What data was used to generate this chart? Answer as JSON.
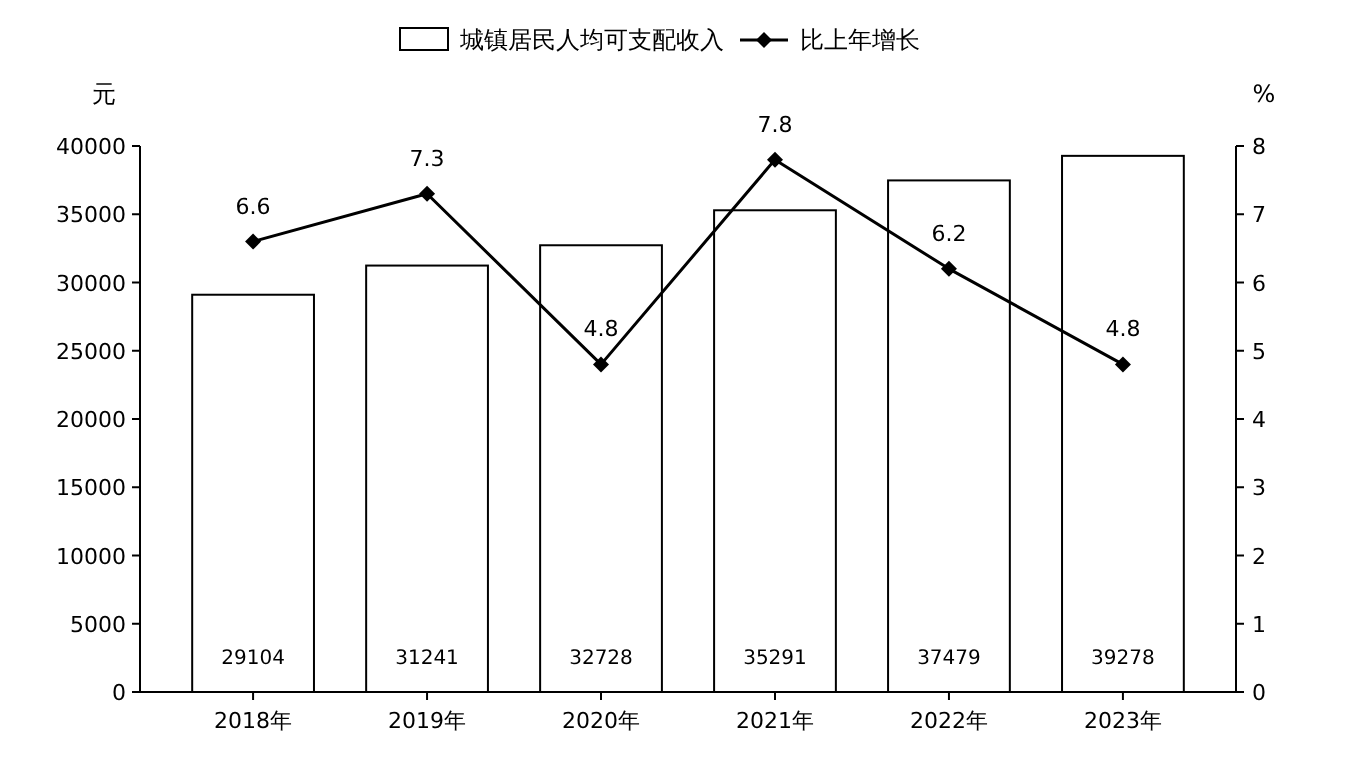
{
  "chart_data": {
    "type": "bar",
    "ylabel": "元",
    "y2label": "%",
    "categories": [
      "2018年",
      "2019年",
      "2020年",
      "2021年",
      "2022年",
      "2023年"
    ],
    "series": [
      {
        "name": "城镇居民人均可支配收入",
        "color": "#ffffff",
        "values": [
          29104,
          31241,
          32728,
          35291,
          37479,
          39278
        ]
      },
      {
        "name": "比上年增长",
        "type": "line",
        "axis": "y2",
        "color": "#000000",
        "marker": "diamond",
        "values": [
          6.6,
          7.3,
          4.8,
          7.8,
          6.2,
          4.8
        ]
      }
    ],
    "ylim": [
      0,
      40000
    ],
    "yticks": [
      0,
      5000,
      10000,
      15000,
      20000,
      25000,
      30000,
      35000,
      40000
    ],
    "y2lim": [
      0,
      8
    ],
    "y2ticks": [
      0,
      1,
      2,
      3,
      4,
      5,
      6,
      7,
      8
    ],
    "data_labels": true,
    "legend": "top",
    "grid": false
  }
}
